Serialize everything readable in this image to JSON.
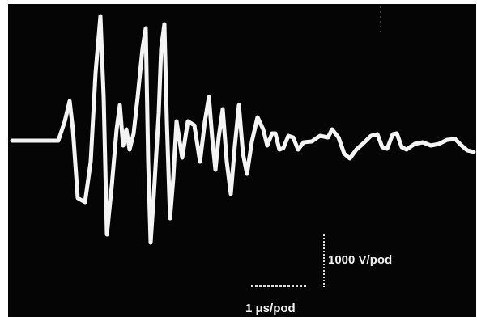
{
  "scale_labels": {
    "voltage": "1000 V/pod",
    "time": "1 μs/pod"
  }
}
